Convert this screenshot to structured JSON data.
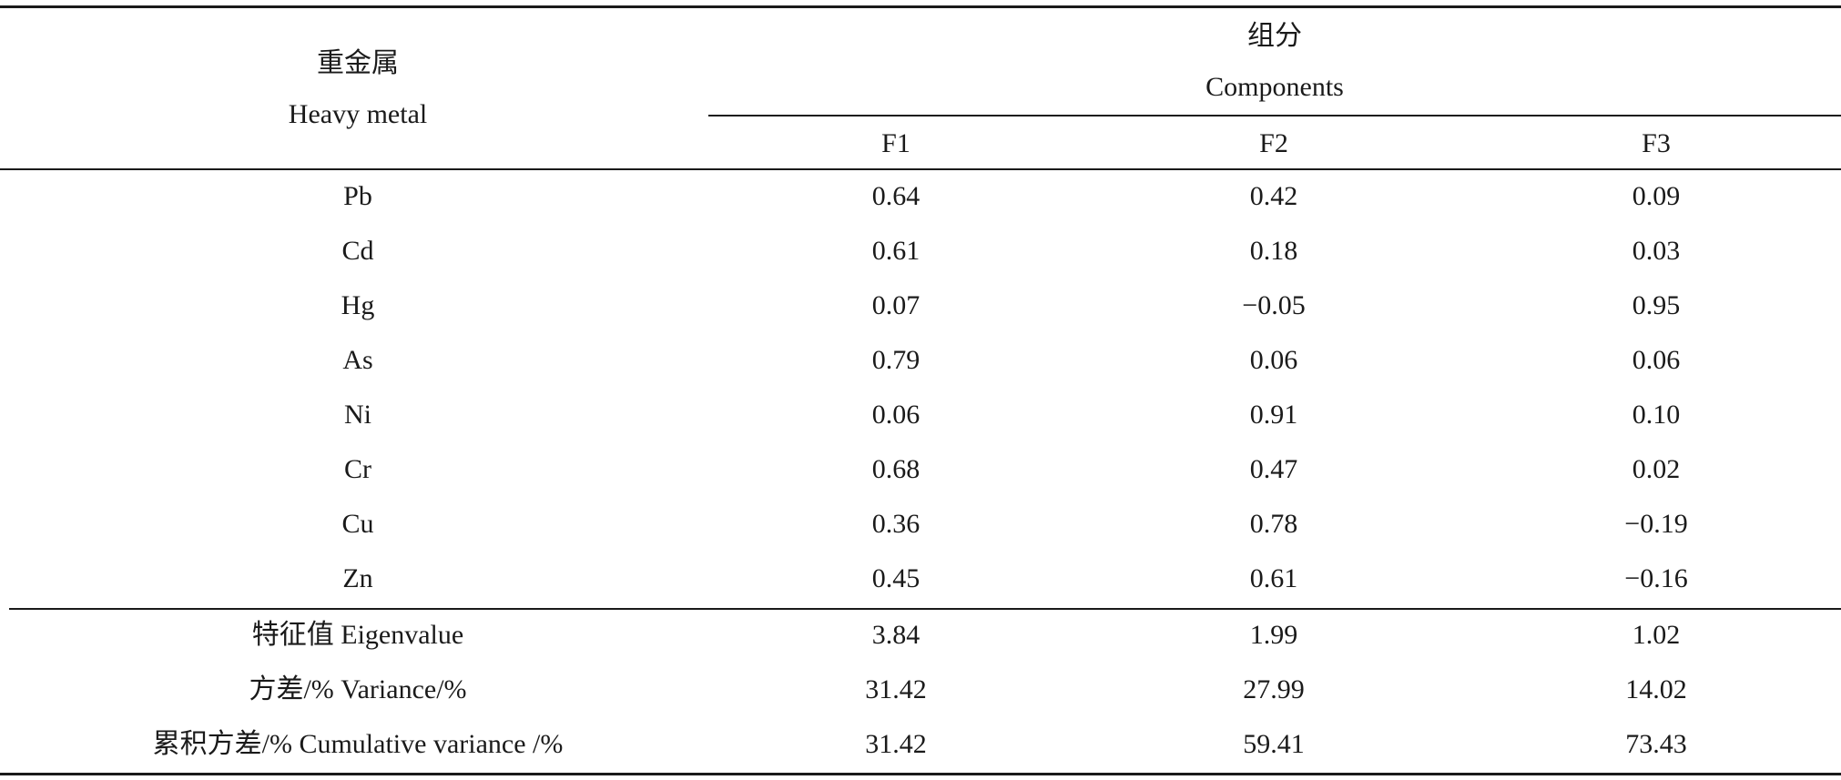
{
  "header": {
    "metal_cn": "重金属",
    "metal_en": "Heavy metal",
    "components_cn": "组分",
    "components_en": "Components",
    "columns": [
      "F1",
      "F2",
      "F3"
    ]
  },
  "rows": [
    {
      "metal": "Pb",
      "values": [
        "0.64",
        "0.42",
        "0.09"
      ]
    },
    {
      "metal": "Cd",
      "values": [
        "0.61",
        "0.18",
        "0.03"
      ]
    },
    {
      "metal": "Hg",
      "values": [
        "0.07",
        "−0.05",
        "0.95"
      ]
    },
    {
      "metal": "As",
      "values": [
        "0.79",
        "0.06",
        "0.06"
      ]
    },
    {
      "metal": "Ni",
      "values": [
        "0.06",
        "0.91",
        "0.10"
      ]
    },
    {
      "metal": "Cr",
      "values": [
        "0.68",
        "0.47",
        "0.02"
      ]
    },
    {
      "metal": "Cu",
      "values": [
        "0.36",
        "0.78",
        "−0.19"
      ]
    },
    {
      "metal": "Zn",
      "values": [
        "0.45",
        "0.61",
        "−0.16"
      ]
    }
  ],
  "summary": [
    {
      "label": "特征值 Eigenvalue",
      "values": [
        "3.84",
        "1.99",
        "1.02"
      ]
    },
    {
      "label": "方差/% Variance/%",
      "values": [
        "31.42",
        "27.99",
        "14.02"
      ]
    },
    {
      "label": "累积方差/% Cumulative variance /%",
      "values": [
        "31.42",
        "59.41",
        "73.43"
      ]
    }
  ]
}
